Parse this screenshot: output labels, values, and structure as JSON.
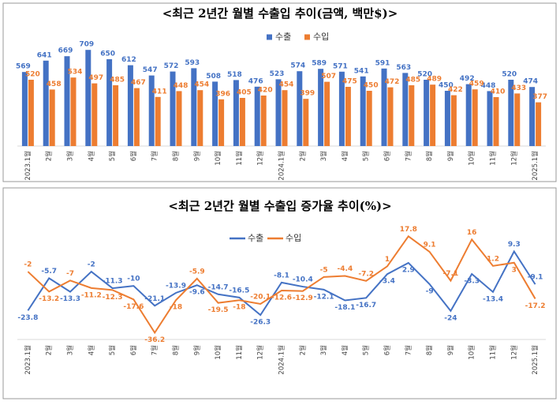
{
  "chart_data": [
    {
      "type": "bar",
      "title": "<최근 2년간 월별 수출입 추이(금액, 백만$)>",
      "categories": [
        "2023.1월",
        "2월",
        "3월",
        "4월",
        "5월",
        "6월",
        "7월",
        "8월",
        "9월",
        "10월",
        "11월",
        "12월",
        "2024.1월",
        "2월",
        "3월",
        "4월",
        "5월",
        "6월",
        "7월",
        "8월",
        "9월",
        "10월",
        "11월",
        "12월",
        "2025.1월"
      ],
      "series": [
        {
          "name": "수출",
          "color": "#4472c4",
          "values": [
            569,
            641,
            669,
            709,
            650,
            612,
            547,
            572,
            593,
            508,
            518,
            476,
            523,
            574,
            589,
            571,
            541,
            591,
            563,
            520,
            450,
            492,
            448,
            520,
            474
          ]
        },
        {
          "name": "수입",
          "color": "#ed7d31",
          "values": [
            520,
            458,
            534,
            497,
            485,
            467,
            411,
            448,
            454,
            396,
            405,
            420,
            454,
            399,
            507,
            475,
            450,
            472,
            485,
            489,
            422,
            459,
            410,
            433,
            377
          ]
        }
      ],
      "ylim": [
        100,
        800
      ],
      "legend": "top"
    },
    {
      "type": "line",
      "title": "<최근 2년간 월별 수출입 증가율 추이(%)>",
      "categories": [
        "2023.1월",
        "2월",
        "3월",
        "4월",
        "5월",
        "6월",
        "7월",
        "8월",
        "9월",
        "10월",
        "11월",
        "12월",
        "2024.1월",
        "2월",
        "3월",
        "4월",
        "5월",
        "6월",
        "7월",
        "8월",
        "9월",
        "10월",
        "11월",
        "12월",
        "2025.1월"
      ],
      "series": [
        {
          "name": "수출",
          "color": "#4472c4",
          "values": [
            -23.8,
            -5.7,
            -13.3,
            -2.0,
            -11.3,
            -10.0,
            -21.1,
            -13.9,
            -9.6,
            -14.7,
            -16.5,
            -26.3,
            -8.1,
            -10.4,
            -12.1,
            -18.1,
            -16.7,
            -3.4,
            2.9,
            -9.0,
            -24.0,
            -3.3,
            -13.4,
            9.3,
            -9.1
          ]
        },
        {
          "name": "수입",
          "color": "#ed7d31",
          "values": [
            -2.0,
            -13.2,
            -7.0,
            -11.2,
            -12.3,
            -17.6,
            -36.2,
            -18.0,
            -5.9,
            -19.5,
            -18.0,
            -20.1,
            -12.6,
            -12.9,
            -5.0,
            -4.4,
            -7.2,
            1.0,
            17.8,
            9.1,
            -7.1,
            16.0,
            1.2,
            3.0,
            -17.2
          ]
        }
      ],
      "ylim": [
        -40,
        25
      ],
      "legend": "top"
    }
  ]
}
